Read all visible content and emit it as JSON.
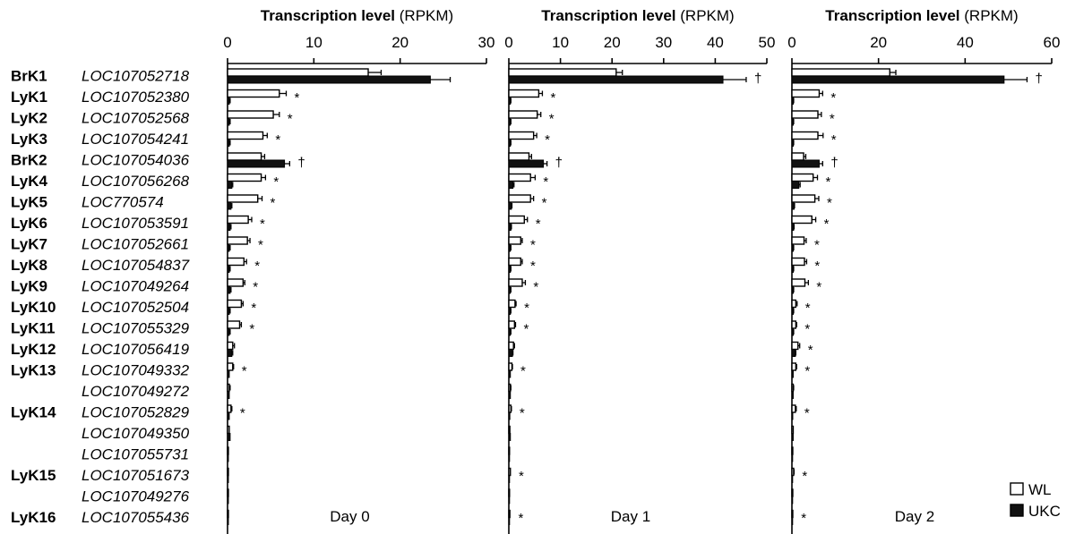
{
  "chart_data": {
    "type": "bar",
    "orientation": "horizontal",
    "axis_title_bold": "Transcription level",
    "axis_title_unit": "(RPKM)",
    "rows": [
      {
        "kinase": "BrK1",
        "gene": "LOC107052718"
      },
      {
        "kinase": "LyK1",
        "gene": "LOC107052380"
      },
      {
        "kinase": "LyK2",
        "gene": "LOC107052568"
      },
      {
        "kinase": "LyK3",
        "gene": "LOC107054241"
      },
      {
        "kinase": "BrK2",
        "gene": "LOC107054036"
      },
      {
        "kinase": "LyK4",
        "gene": "LOC107056268"
      },
      {
        "kinase": "LyK5",
        "gene": "LOC770574"
      },
      {
        "kinase": "LyK6",
        "gene": "LOC107053591"
      },
      {
        "kinase": "LyK7",
        "gene": "LOC107052661"
      },
      {
        "kinase": "LyK8",
        "gene": "LOC107054837"
      },
      {
        "kinase": "LyK9",
        "gene": "LOC107049264"
      },
      {
        "kinase": "LyK10",
        "gene": "LOC107052504"
      },
      {
        "kinase": "LyK11",
        "gene": "LOC107055329"
      },
      {
        "kinase": "LyK12",
        "gene": "LOC107056419"
      },
      {
        "kinase": "LyK13",
        "gene": "LOC107049332"
      },
      {
        "kinase": "",
        "gene": "LOC107049272"
      },
      {
        "kinase": "LyK14",
        "gene": "LOC107052829"
      },
      {
        "kinase": "",
        "gene": "LOC107049350"
      },
      {
        "kinase": "",
        "gene": "LOC107055731"
      },
      {
        "kinase": "LyK15",
        "gene": "LOC107051673"
      },
      {
        "kinase": "",
        "gene": "LOC107049276"
      },
      {
        "kinase": "LyK16",
        "gene": "LOC107055436"
      }
    ],
    "legend": {
      "position": "bottom-right",
      "entries": [
        {
          "name": "WL",
          "color": "#ffffff"
        },
        {
          "name": "UKC",
          "color": "#111111"
        }
      ]
    },
    "panels": [
      {
        "label": "Day 0",
        "xlim": [
          0,
          30
        ],
        "ticks": [
          0,
          10,
          20,
          30
        ],
        "series": [
          {
            "name": "WL",
            "values": [
              16.3,
              6.0,
              5.3,
              4.1,
              3.9,
              3.9,
              3.5,
              2.4,
              2.3,
              1.9,
              1.8,
              1.6,
              1.4,
              0.6,
              0.6,
              0.2,
              0.4,
              0.2,
              0.1,
              0.1,
              0.1,
              0.1
            ],
            "errors": [
              1.5,
              0.8,
              0.7,
              0.5,
              0.4,
              0.5,
              0.5,
              0.4,
              0.3,
              0.3,
              0.2,
              0.2,
              0.2,
              0.2,
              0.1,
              0.1,
              0.1,
              0.05,
              0.05,
              0.05,
              0.05,
              0.05
            ],
            "marks": [
              "",
              "*",
              "*",
              "*",
              "",
              "*",
              "*",
              "*",
              "*",
              "*",
              "*",
              "*",
              "*",
              "",
              "*",
              "",
              "*",
              "",
              "",
              "",
              "",
              ""
            ]
          },
          {
            "name": "UKC",
            "values": [
              23.5,
              0.2,
              0.2,
              0.2,
              6.6,
              0.5,
              0.4,
              0.3,
              0.2,
              0.2,
              0.3,
              0.2,
              0.2,
              0.5,
              0.2,
              0.2,
              0.2,
              0.3,
              0.1,
              0.1,
              0.1,
              0.1
            ],
            "errors": [
              2.3,
              0.1,
              0.1,
              0.1,
              0.6,
              0.1,
              0.1,
              0.1,
              0.1,
              0.1,
              0.1,
              0.1,
              0.1,
              0.1,
              0.05,
              0.05,
              0.05,
              0.05,
              0.05,
              0.05,
              0.05,
              0.05
            ],
            "marks": [
              "",
              "",
              "",
              "",
              "†",
              "",
              "",
              "",
              "",
              "",
              "",
              "",
              "",
              "",
              "",
              "",
              "",
              "",
              "",
              "",
              "",
              ""
            ]
          }
        ]
      },
      {
        "label": "Day 1",
        "xlim": [
          0,
          50
        ],
        "ticks": [
          0,
          10,
          20,
          30,
          40,
          50
        ],
        "series": [
          {
            "name": "WL",
            "values": [
              20.8,
              5.8,
              5.5,
              4.8,
              3.9,
              4.2,
              4.2,
              3.0,
              2.3,
              2.3,
              2.6,
              1.2,
              1.1,
              0.9,
              0.6,
              0.3,
              0.4,
              0.2,
              0.1,
              0.3,
              0.1,
              0.2
            ],
            "errors": [
              1.2,
              0.7,
              0.7,
              0.6,
              0.5,
              0.9,
              0.6,
              0.6,
              0.3,
              0.3,
              0.6,
              0.2,
              0.2,
              0.2,
              0.1,
              0.1,
              0.1,
              0.05,
              0.05,
              0.05,
              0.05,
              0.05
            ],
            "marks": [
              "",
              "*",
              "*",
              "*",
              "",
              "*",
              "*",
              "*",
              "*",
              "*",
              "*",
              "*",
              "*",
              "",
              "*",
              "",
              "*",
              "",
              "",
              "*",
              "",
              "*"
            ]
          },
          {
            "name": "UKC",
            "values": [
              41.5,
              0.3,
              0.3,
              0.3,
              6.7,
              0.8,
              0.5,
              0.4,
              0.3,
              0.3,
              0.3,
              0.3,
              0.3,
              0.7,
              0.3,
              0.3,
              0.2,
              0.3,
              0.1,
              0.1,
              0.1,
              0.1
            ],
            "errors": [
              4.5,
              0.1,
              0.1,
              0.1,
              0.7,
              0.2,
              0.1,
              0.1,
              0.1,
              0.1,
              0.1,
              0.1,
              0.1,
              0.1,
              0.05,
              0.05,
              0.05,
              0.05,
              0.05,
              0.05,
              0.05,
              0.05
            ],
            "marks": [
              "†",
              "",
              "",
              "",
              "†",
              "",
              "",
              "",
              "",
              "",
              "",
              "",
              "",
              "",
              "",
              "",
              "",
              "",
              "",
              "",
              "",
              ""
            ]
          }
        ]
      },
      {
        "label": "Day 2",
        "xlim": [
          0,
          60
        ],
        "ticks": [
          0,
          20,
          40,
          60
        ],
        "series": [
          {
            "name": "WL",
            "values": [
              22.6,
              6.3,
              6.0,
              6.0,
              2.7,
              4.9,
              5.3,
              4.6,
              2.8,
              2.9,
              3.0,
              0.9,
              0.9,
              1.4,
              0.9,
              0.3,
              0.8,
              0.3,
              0.2,
              0.4,
              0.2,
              0.2
            ],
            "errors": [
              1.4,
              0.8,
              0.8,
              1.2,
              0.5,
              1.0,
              0.9,
              0.9,
              0.5,
              0.5,
              0.8,
              0.3,
              0.2,
              0.4,
              0.2,
              0.1,
              0.2,
              0.05,
              0.05,
              0.1,
              0.05,
              0.05
            ],
            "marks": [
              "",
              "*",
              "*",
              "*",
              "",
              "*",
              "*",
              "*",
              "*",
              "*",
              "*",
              "*",
              "*",
              "*",
              "*",
              "",
              "*",
              "",
              "",
              "*",
              "",
              "*"
            ]
          },
          {
            "name": "UKC",
            "values": [
              49.0,
              0.3,
              0.3,
              0.3,
              6.3,
              1.6,
              0.5,
              0.4,
              0.3,
              0.3,
              0.3,
              0.3,
              0.3,
              0.8,
              0.3,
              0.3,
              0.2,
              0.3,
              0.1,
              0.1,
              0.1,
              0.1
            ],
            "errors": [
              5.3,
              0.1,
              0.1,
              0.1,
              0.8,
              0.3,
              0.1,
              0.1,
              0.1,
              0.1,
              0.1,
              0.1,
              0.1,
              0.1,
              0.05,
              0.05,
              0.05,
              0.05,
              0.05,
              0.05,
              0.05,
              0.05
            ],
            "marks": [
              "†",
              "",
              "",
              "",
              "†",
              "",
              "",
              "",
              "",
              "",
              "",
              "",
              "",
              "",
              "",
              "",
              "",
              "",
              "",
              "",
              "",
              ""
            ]
          }
        ]
      }
    ]
  }
}
